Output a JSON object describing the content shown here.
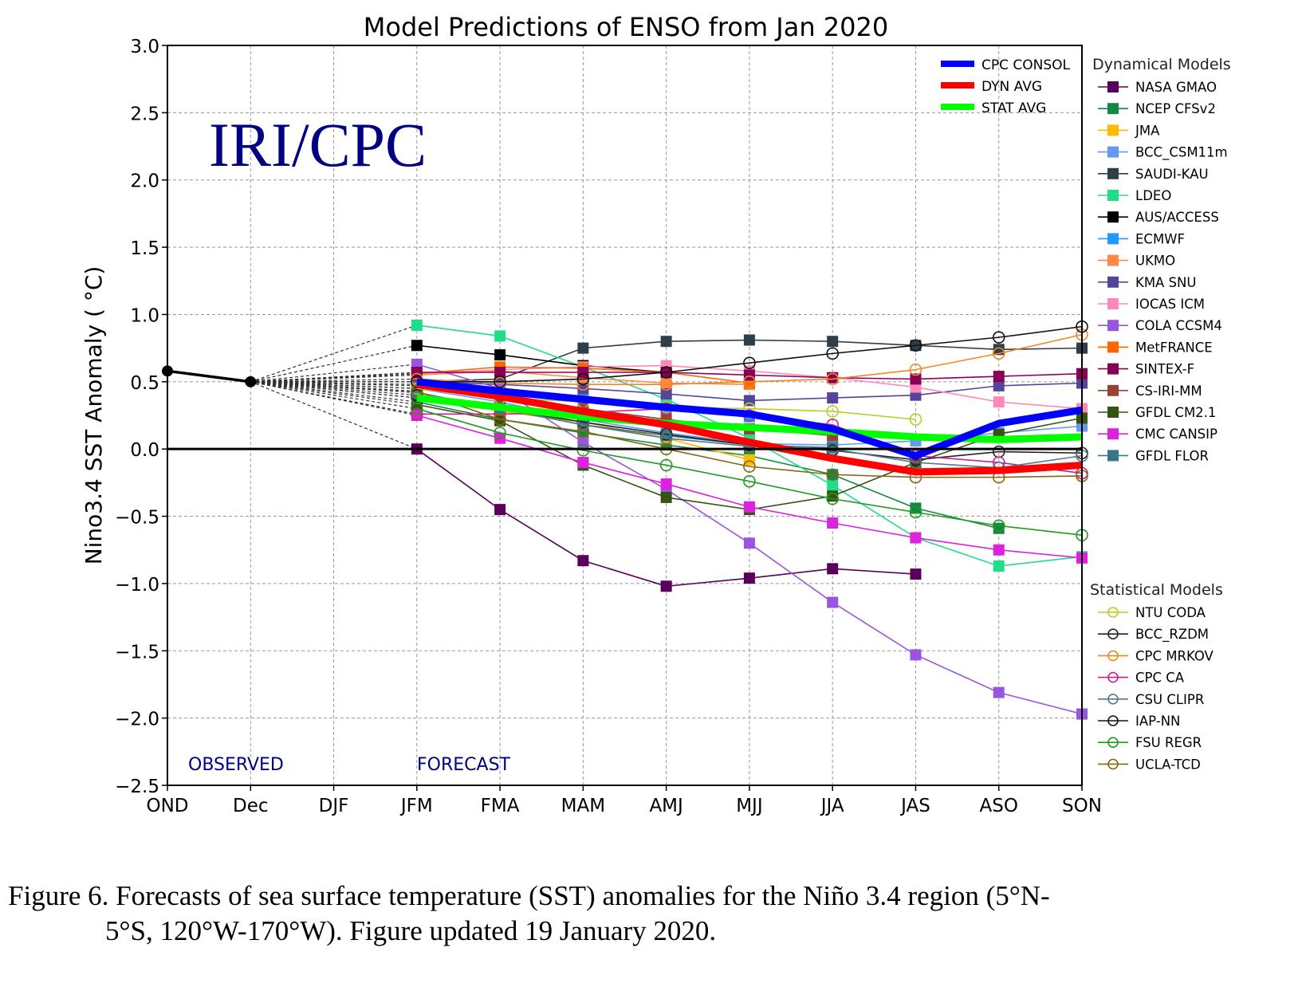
{
  "chart_data": {
    "type": "line",
    "title": "Model Predictions of ENSO from Jan 2020",
    "watermark": "IRI/CPC",
    "ylabel": "Nino3.4 SST Anomaly ( °C)",
    "xlabel": "",
    "ylim": [
      -2.5,
      3.0
    ],
    "yticks": [
      3.0,
      2.5,
      2.0,
      1.5,
      1.0,
      0.5,
      0.0,
      -0.5,
      -1.0,
      -1.5,
      -2.0,
      -2.5
    ],
    "ytick_labels": [
      "3.0",
      "2.5",
      "2.0",
      "1.5",
      "1.0",
      "0.5",
      "0.0",
      "−0.5",
      "−1.0",
      "−1.5",
      "−2.0",
      "−2.5"
    ],
    "categories": [
      "OND",
      "Dec",
      "DJF",
      "JFM",
      "FMA",
      "MAM",
      "AMJ",
      "MJJ",
      "JJA",
      "JAS",
      "ASO",
      "SON"
    ],
    "grid": true,
    "annotations": {
      "observed": "OBSERVED",
      "forecast": "FORECAST"
    },
    "observed": {
      "x": [
        "OND",
        "Dec"
      ],
      "values": [
        0.58,
        0.5
      ],
      "color": "#000000"
    },
    "averages": [
      {
        "name": "CPC CONSOL",
        "color": "#0000ff",
        "values": [
          0.5,
          0.43,
          0.37,
          0.31,
          0.26,
          0.15,
          -0.05,
          0.19,
          0.29
        ]
      },
      {
        "name": "DYN AVG",
        "color": "#ff0000",
        "values": [
          0.48,
          0.39,
          0.28,
          0.18,
          0.05,
          -0.07,
          -0.17,
          -0.16,
          -0.12
        ]
      },
      {
        "name": "STAT AVG",
        "color": "#00ff00",
        "values": [
          0.38,
          0.31,
          0.24,
          0.19,
          0.16,
          0.13,
          0.09,
          0.07,
          0.09
        ]
      }
    ],
    "forecast_start": "JFM",
    "dynamical_legend_title": "Dynamical Models",
    "statistical_legend_title": "Statistical Models",
    "series": [
      {
        "name": "NASA GMAO",
        "group": "dynamical",
        "marker": "square",
        "color": "#5a005a",
        "values": [
          0.0,
          -0.45,
          -0.83,
          -1.02,
          -0.96,
          -0.89,
          -0.93,
          null,
          null
        ]
      },
      {
        "name": "NCEP CFSv2",
        "group": "dynamical",
        "marker": "square",
        "color": "#118844",
        "values": [
          0.35,
          0.22,
          0.12,
          0.03,
          -0.05,
          -0.19,
          -0.44,
          -0.59,
          null
        ]
      },
      {
        "name": "JMA",
        "group": "dynamical",
        "marker": "square",
        "color": "#ffbb00",
        "values": [
          0.42,
          0.28,
          0.2,
          0.08,
          -0.08,
          null,
          null,
          null,
          null
        ]
      },
      {
        "name": "BCC_CSM11m",
        "group": "dynamical",
        "marker": "square",
        "color": "#6699ee",
        "values": [
          0.45,
          0.35,
          0.22,
          0.12,
          0.04,
          0.03,
          0.06,
          0.12,
          0.17
        ]
      },
      {
        "name": "SAUDI-KAU",
        "group": "dynamical",
        "marker": "square",
        "color": "#2f3f4a",
        "values": [
          0.5,
          0.52,
          0.75,
          0.8,
          0.81,
          0.8,
          0.77,
          0.74,
          0.75
        ]
      },
      {
        "name": "LDEO",
        "group": "dynamical",
        "marker": "square",
        "color": "#22dd88",
        "values": [
          0.92,
          0.84,
          0.61,
          0.37,
          0.08,
          -0.27,
          -0.66,
          -0.87,
          -0.8
        ]
      },
      {
        "name": "AUS/ACCESS",
        "group": "dynamical",
        "marker": "square",
        "color": "#000000",
        "values": [
          0.77,
          0.7,
          0.62,
          0.57,
          null,
          null,
          null,
          null,
          null
        ]
      },
      {
        "name": "ECMWF",
        "group": "dynamical",
        "marker": "square",
        "color": "#2299ff",
        "values": [
          0.47,
          0.44,
          0.37,
          0.3,
          0.24,
          null,
          null,
          null,
          null
        ]
      },
      {
        "name": "UKMO",
        "group": "dynamical",
        "marker": "square",
        "color": "#ff8844",
        "values": [
          0.55,
          0.58,
          0.53,
          0.49,
          0.48,
          null,
          null,
          null,
          null
        ]
      },
      {
        "name": "KMA SNU",
        "group": "dynamical",
        "marker": "square",
        "color": "#554499",
        "values": [
          0.5,
          0.48,
          0.45,
          0.41,
          0.36,
          0.38,
          0.4,
          0.47,
          0.49
        ]
      },
      {
        "name": "IOCAS ICM",
        "group": "dynamical",
        "marker": "square",
        "color": "#ff88bb",
        "values": [
          0.56,
          0.59,
          0.61,
          0.62,
          0.58,
          0.53,
          0.46,
          0.35,
          0.3
        ]
      },
      {
        "name": "COLA CCSM4",
        "group": "dynamical",
        "marker": "square",
        "color": "#9955dd",
        "values": [
          0.63,
          0.45,
          0.05,
          -0.3,
          -0.7,
          -1.14,
          -1.53,
          -1.81,
          -1.97
        ]
      },
      {
        "name": "MetFRANCE",
        "group": "dynamical",
        "marker": "square",
        "color": "#ff6600",
        "values": [
          0.56,
          0.61,
          0.6,
          0.57,
          0.49,
          null,
          null,
          null,
          null
        ]
      },
      {
        "name": "SINTEX-F",
        "group": "dynamical",
        "marker": "square",
        "color": "#880055",
        "values": [
          0.57,
          0.57,
          0.57,
          0.57,
          0.55,
          0.53,
          0.52,
          0.54,
          0.56
        ]
      },
      {
        "name": "CS-IRI-MM",
        "group": "dynamical",
        "marker": "square",
        "color": "#994433",
        "values": [
          0.45,
          0.38,
          0.3,
          0.22,
          0.15,
          0.1,
          null,
          null,
          null
        ]
      },
      {
        "name": "GFDL CM2.1",
        "group": "dynamical",
        "marker": "square",
        "color": "#335511",
        "values": [
          0.33,
          0.21,
          -0.12,
          -0.36,
          -0.45,
          -0.35,
          -0.1,
          0.11,
          0.23
        ]
      },
      {
        "name": "CMC CANSIP",
        "group": "dynamical",
        "marker": "square",
        "color": "#dd22dd",
        "values": [
          0.25,
          0.08,
          -0.1,
          -0.26,
          -0.43,
          -0.55,
          -0.66,
          -0.75,
          -0.81
        ]
      },
      {
        "name": "GFDL FLOR",
        "group": "dynamical",
        "marker": "square",
        "color": "#337788",
        "values": [
          0.42,
          0.3,
          0.18,
          0.1,
          0.03,
          0.01,
          null,
          null,
          null
        ]
      },
      {
        "name": "NTU CODA",
        "group": "statistical",
        "marker": "circle",
        "color": "#bbcc22",
        "values": [
          0.45,
          0.38,
          0.35,
          0.31,
          0.3,
          0.28,
          0.22,
          null,
          null
        ]
      },
      {
        "name": "BCC_RZDM",
        "group": "statistical",
        "marker": "circle",
        "color": "#222222",
        "values": [
          0.4,
          0.3,
          0.2,
          0.11,
          0.03,
          -0.01,
          -0.08,
          -0.02,
          -0.03
        ]
      },
      {
        "name": "CPC MRKOV",
        "group": "statistical",
        "marker": "circle",
        "color": "#ee8822",
        "values": [
          0.52,
          0.49,
          0.48,
          0.48,
          0.5,
          0.52,
          0.59,
          0.71,
          0.85
        ]
      },
      {
        "name": "CPC CA",
        "group": "statistical",
        "marker": "circle",
        "color": "#cc2288",
        "values": [
          0.26,
          0.26,
          0.27,
          0.3,
          0.25,
          0.18,
          -0.05,
          -0.1,
          -0.18
        ]
      },
      {
        "name": "CSU CLIPR",
        "group": "statistical",
        "marker": "circle",
        "color": "#557788",
        "values": [
          0.38,
          0.3,
          0.18,
          0.08,
          0.02,
          0.0,
          -0.1,
          -0.14,
          -0.05
        ]
      },
      {
        "name": "IAP-NN",
        "group": "statistical",
        "marker": "circle",
        "color": "#111111",
        "values": [
          0.5,
          0.5,
          0.52,
          0.57,
          0.64,
          0.71,
          0.77,
          0.83,
          0.91
        ]
      },
      {
        "name": "FSU REGR",
        "group": "statistical",
        "marker": "circle",
        "color": "#229922",
        "values": [
          0.3,
          0.12,
          -0.01,
          -0.12,
          -0.24,
          -0.37,
          -0.47,
          -0.57,
          -0.64
        ]
      },
      {
        "name": "UCLA-TCD",
        "group": "statistical",
        "marker": "circle",
        "color": "#886611",
        "values": [
          0.43,
          0.22,
          0.13,
          0.0,
          -0.13,
          -0.19,
          -0.21,
          -0.21,
          -0.2
        ]
      }
    ]
  },
  "caption": {
    "line1": "Figure 6. Forecasts of sea surface temperature (SST) anomalies for the Niño 3.4 region (5°N-",
    "line2": "5°S, 120°W-170°W). Figure updated 19 January 2020."
  }
}
